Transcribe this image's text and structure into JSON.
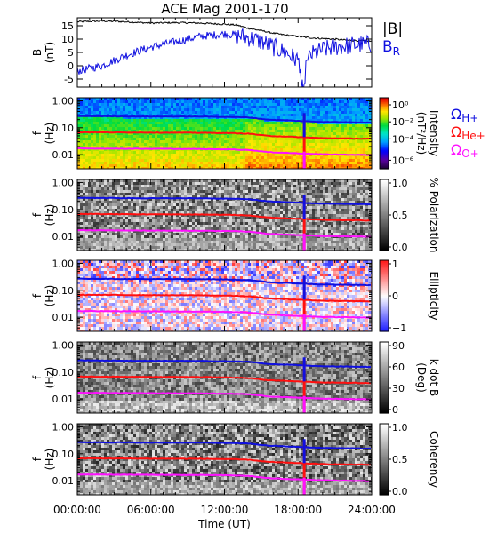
{
  "chart_data": {
    "type": "multi-panel spectrogram",
    "title": "ACE Mag 2001-170",
    "x_axis": {
      "label": "Time (UT)",
      "range_hours": [
        0,
        24
      ],
      "tick_hours": [
        0,
        6,
        12,
        18,
        24
      ],
      "tick_labels": [
        "00:00:00",
        "06:00:00",
        "12:00:00",
        "18:00:00",
        "24:00:00"
      ]
    },
    "freq_axis": {
      "label_line1": "f",
      "label_line2": "(Hz)",
      "scale": "log",
      "range": [
        0.003,
        1.3
      ],
      "tick_values": [
        1.0,
        0.1,
        0.01
      ],
      "tick_labels": [
        "1.00",
        "0.10",
        "0.01"
      ]
    },
    "gyro_lines": [
      {
        "name": "Ω_H+",
        "label_main": "Ω",
        "label_sub": "H+",
        "color": "#1010e0",
        "points": [
          [
            0,
            0.27
          ],
          [
            6,
            0.26
          ],
          [
            10,
            0.26
          ],
          [
            12.5,
            0.25
          ],
          [
            14,
            0.24
          ],
          [
            15.5,
            0.2
          ],
          [
            18,
            0.18
          ],
          [
            19,
            0.17
          ],
          [
            20,
            0.165
          ],
          [
            22,
            0.16
          ],
          [
            24,
            0.155
          ]
        ]
      },
      {
        "name": "Ω_He+",
        "label_main": "Ω",
        "label_sub": "He+",
        "color": "#ff1010",
        "points": [
          [
            0,
            0.068
          ],
          [
            6,
            0.066
          ],
          [
            10,
            0.065
          ],
          [
            12.5,
            0.063
          ],
          [
            14,
            0.06
          ],
          [
            15.5,
            0.05
          ],
          [
            18,
            0.045
          ],
          [
            19,
            0.043
          ],
          [
            20,
            0.041
          ],
          [
            22,
            0.04
          ],
          [
            24,
            0.039
          ]
        ]
      },
      {
        "name": "Ω_O+",
        "label_main": "Ω",
        "label_sub": "O+",
        "color": "#ff10ff",
        "points": [
          [
            0,
            0.017
          ],
          [
            6,
            0.0165
          ],
          [
            10,
            0.0162
          ],
          [
            12.5,
            0.0158
          ],
          [
            14,
            0.015
          ],
          [
            15.5,
            0.0125
          ],
          [
            18,
            0.0112
          ],
          [
            19,
            0.0108
          ],
          [
            20,
            0.0103
          ],
          [
            22,
            0.01
          ],
          [
            24,
            0.0097
          ]
        ]
      }
    ],
    "panels": [
      {
        "kind": "line",
        "ylabel_line1": "B",
        "ylabel_line2": "(nT)",
        "ylim": [
          -8,
          18
        ],
        "y_ticks": [
          15,
          10,
          5,
          0,
          -5
        ],
        "y_tick_labels": [
          "15",
          "10",
          "5",
          "0",
          "-5"
        ],
        "series": [
          {
            "name": "|B|",
            "color": "#000000",
            "points": [
              [
                0,
                16.5
              ],
              [
                2,
                16.8
              ],
              [
                4,
                16.5
              ],
              [
                6,
                16.0
              ],
              [
                8,
                16.2
              ],
              [
                10,
                16.0
              ],
              [
                12,
                15.6
              ],
              [
                13,
                15.3
              ],
              [
                14,
                14.0
              ],
              [
                15,
                13.2
              ],
              [
                16,
                12.2
              ],
              [
                17,
                11.5
              ],
              [
                18,
                11.0
              ],
              [
                19,
                10.5
              ],
              [
                20,
                10.2
              ],
              [
                21,
                10.0
              ],
              [
                22,
                9.6
              ],
              [
                23,
                9.4
              ],
              [
                24,
                9.2
              ]
            ]
          },
          {
            "name": "B_R",
            "color": "#1010e0",
            "points": [
              [
                0,
                -2
              ],
              [
                1,
                -1
              ],
              [
                2,
                0
              ],
              [
                3,
                2
              ],
              [
                4,
                4
              ],
              [
                5,
                5.5
              ],
              [
                6,
                7
              ],
              [
                7,
                8
              ],
              [
                8,
                9
              ],
              [
                9,
                10
              ],
              [
                10,
                11
              ],
              [
                11,
                11.5
              ],
              [
                12,
                12
              ],
              [
                13,
                11.5
              ],
              [
                14,
                10.5
              ],
              [
                15,
                9
              ],
              [
                16,
                7
              ],
              [
                17,
                5
              ],
              [
                18,
                2
              ],
              [
                18.5,
                -3
              ],
              [
                19,
                4
              ],
              [
                20,
                6
              ],
              [
                21,
                7
              ],
              [
                22,
                7.5
              ],
              [
                23,
                8
              ],
              [
                24,
                8
              ]
            ]
          }
        ],
        "legend": [
          {
            "text_main": "|B|",
            "text_sub": "",
            "color": "#000000"
          },
          {
            "text_main": "B",
            "text_sub": "R",
            "color": "#1010e0"
          }
        ]
      },
      {
        "kind": "spectrogram",
        "colormap": "rainbow",
        "colorbar_label_line1": "Intensity",
        "colorbar_label_line2": "(nT²/Hz)",
        "colorbar_ticks": [
          {
            "label": "10⁰",
            "frac": 0.9
          },
          {
            "label": "10⁻²",
            "frac": 0.66
          },
          {
            "label": "10⁻⁴",
            "frac": 0.42
          },
          {
            "label": "10⁻⁶",
            "frac": 0.12
          }
        ]
      },
      {
        "kind": "spectrogram",
        "colormap": "gray",
        "colorbar_label_line1": "% Polarization",
        "colorbar_label_line2": "",
        "colorbar_ticks": [
          {
            "label": "1.0",
            "frac": 0.95
          },
          {
            "label": "0.5",
            "frac": 0.5
          },
          {
            "label": "0.0",
            "frac": 0.05
          }
        ]
      },
      {
        "kind": "spectrogram",
        "colormap": "bwr",
        "colorbar_label_line1": "Ellipticity",
        "colorbar_label_line2": "",
        "colorbar_ticks": [
          {
            "label": "1",
            "frac": 0.95
          },
          {
            "label": "0",
            "frac": 0.5
          },
          {
            "label": "−1",
            "frac": 0.05
          }
        ]
      },
      {
        "kind": "spectrogram",
        "colormap": "gray",
        "colorbar_label_line1": "k dot B",
        "colorbar_label_line2": "(Deg)",
        "colorbar_ticks": [
          {
            "label": "90",
            "frac": 0.95
          },
          {
            "label": "60",
            "frac": 0.65
          },
          {
            "label": "30",
            "frac": 0.35
          },
          {
            "label": "0",
            "frac": 0.05
          }
        ]
      },
      {
        "kind": "spectrogram",
        "colormap": "gray",
        "colorbar_label_line1": "Coherency",
        "colorbar_label_line2": "",
        "colorbar_ticks": [
          {
            "label": "1.0",
            "frac": 0.95
          },
          {
            "label": "0.5",
            "frac": 0.5
          },
          {
            "label": "0.0",
            "frac": 0.05
          }
        ]
      }
    ]
  }
}
